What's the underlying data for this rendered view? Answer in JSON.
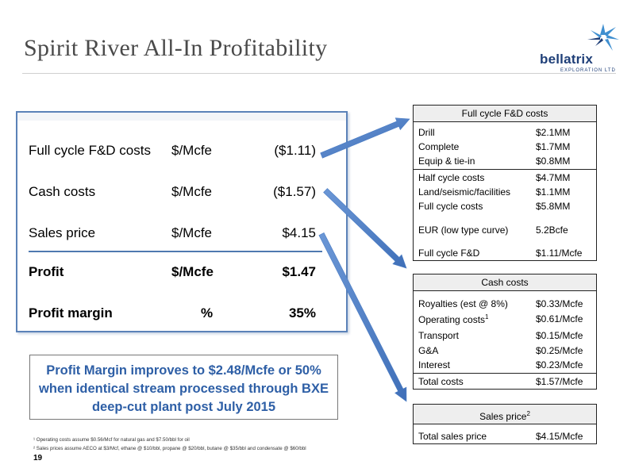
{
  "page": {
    "title": "Spirit River All-In Profitability",
    "page_number": "19"
  },
  "logo": {
    "name": "bellatrix",
    "sub": "EXPLORATION LTD"
  },
  "summary": {
    "rows": [
      {
        "label": "Full cycle F&D costs",
        "unit": "$/Mcfe",
        "value": "($1.11)",
        "bold": false
      },
      {
        "label": "Cash costs",
        "unit": "$/Mcfe",
        "value": "($1.57)",
        "bold": false
      },
      {
        "label": "Sales price",
        "unit": "$/Mcfe",
        "value": "$4.15",
        "bold": false
      },
      {
        "label": "Profit",
        "unit": "$/Mcfe",
        "value": "$1.47",
        "bold": true
      },
      {
        "label": "Profit margin",
        "unit": "%",
        "value": "35%",
        "bold": true
      }
    ]
  },
  "callout": {
    "lines": [
      "Profit Margin improves to $2.48/Mcfe or 50%",
      "when identical stream processed through BXE",
      "deep-cut plant post July 2015"
    ]
  },
  "footnotes": [
    "¹ Operating costs assume $0.56/Mcf for natural gas and $7.50/bbl for oil",
    "² Sales prices assume AECO at $3/Mcf, ethane @ $10/bbl, propane @ $20/bbl, butane @ $35/bbl and condensate @ $60/bbl"
  ],
  "fd_table": {
    "header": "Full cycle F&D costs",
    "rows": [
      {
        "k": "Drill",
        "v": "$2.1MM"
      },
      {
        "k": "Complete",
        "v": "$1.7MM"
      },
      {
        "k": "Equip & tie-in",
        "v": "$0.8MM"
      },
      {
        "k": "Half cycle costs",
        "v": "$4.7MM"
      },
      {
        "k": "Land/seismic/facilities",
        "v": "$1.1MM"
      },
      {
        "k": "Full cycle costs",
        "v": "$5.8MM"
      },
      {
        "k": "EUR (low type curve)",
        "v": "5.2Bcfe"
      },
      {
        "k": "Full cycle F&D",
        "v": "$1.11/Mcfe"
      }
    ]
  },
  "cash_table": {
    "header": "Cash costs",
    "rows": [
      {
        "k": "Royalties (est @ 8%)",
        "v": "$0.33/Mcfe"
      },
      {
        "k": "Operating costs",
        "sup": "1",
        "v": "$0.61/Mcfe"
      },
      {
        "k": "Transport",
        "v": "$0.15/Mcfe"
      },
      {
        "k": "G&A",
        "v": "$0.25/Mcfe"
      },
      {
        "k": "Interest",
        "v": "$0.23/Mcfe"
      },
      {
        "k": "Total costs",
        "v": "$1.57/Mcfe"
      }
    ]
  },
  "sales_table": {
    "header": "Sales price",
    "header_sup": "2",
    "rows": [
      {
        "k": "Total sales price",
        "v": "$4.15/Mcfe"
      }
    ]
  },
  "colors": {
    "accent": "#2e5fa6",
    "box_border": "#5b82b8",
    "arrow_fill": "#4a7cc4"
  }
}
